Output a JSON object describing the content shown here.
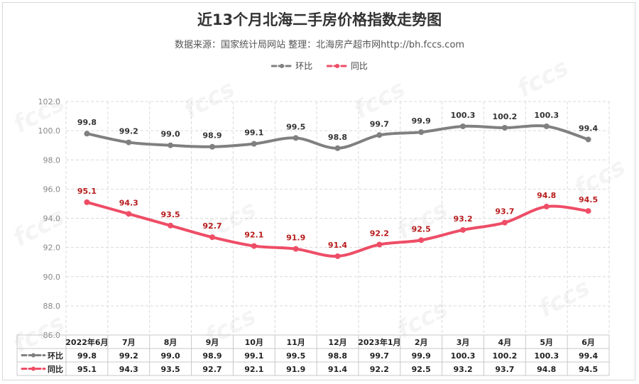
{
  "title": "近13个月北海二手房价格指数走势图",
  "subtitle": "数据来源：国家统计局网站   整理：北海房产超市网http://bh.fccs.com",
  "colors": {
    "huanbi": "#808080",
    "tongbi": "#ee4d66",
    "grid": "#d9d9d9"
  },
  "chart_data": {
    "type": "line",
    "categories": [
      "2022年6月",
      "7月",
      "8月",
      "9月",
      "10月",
      "11月",
      "12月",
      "2023年1月",
      "2月",
      "3月",
      "4月",
      "5月",
      "6月"
    ],
    "series": [
      {
        "name": "环比",
        "values": [
          99.8,
          99.2,
          99.0,
          98.9,
          99.1,
          99.5,
          98.8,
          99.7,
          99.9,
          100.3,
          100.2,
          100.3,
          99.4
        ]
      },
      {
        "name": "同比",
        "values": [
          95.1,
          94.3,
          93.5,
          92.7,
          92.1,
          91.9,
          91.4,
          92.2,
          92.5,
          93.2,
          93.7,
          94.8,
          94.5
        ]
      }
    ],
    "ylim": [
      86.0,
      102.0
    ],
    "yticks": [
      "86.0",
      "88.0",
      "90.0",
      "92.0",
      "94.0",
      "96.0",
      "98.0",
      "100.0",
      "102.0"
    ],
    "xlabel": "",
    "ylabel": "",
    "legend": "top-center",
    "grid": true,
    "data_table": true
  }
}
